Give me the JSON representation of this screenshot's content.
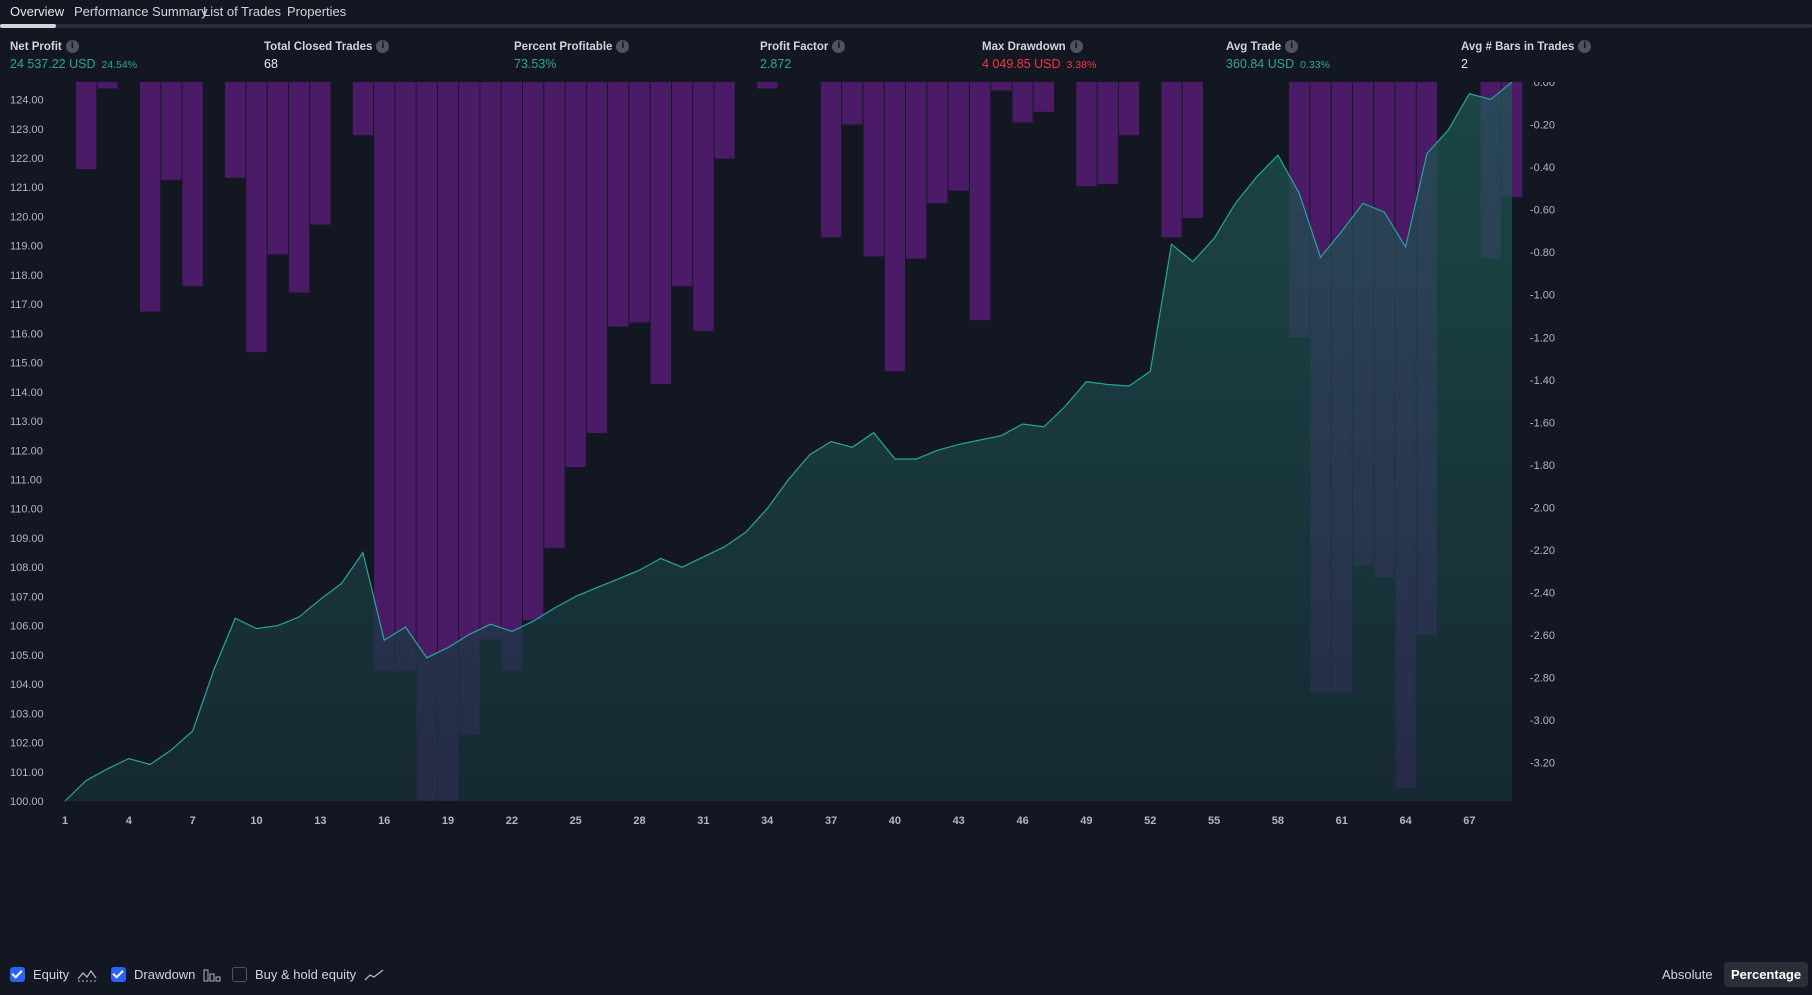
{
  "tabs": [
    {
      "label": "Overview",
      "active": true
    },
    {
      "label": "Performance Summary",
      "active": false
    },
    {
      "label": "List of Trades",
      "active": false
    },
    {
      "label": "Properties",
      "active": false
    }
  ],
  "stats": {
    "net_profit": {
      "label": "Net Profit",
      "value": "24 537.22 USD",
      "sub": "24.54%"
    },
    "total_closed_trades": {
      "label": "Total Closed Trades",
      "value": "68"
    },
    "percent_profitable": {
      "label": "Percent Profitable",
      "value": "73.53%"
    },
    "profit_factor": {
      "label": "Profit Factor",
      "value": "2.872"
    },
    "max_drawdown": {
      "label": "Max Drawdown",
      "value": "4 049.85 USD",
      "sub": "3.38%"
    },
    "avg_trade": {
      "label": "Avg Trade",
      "value": "360.84 USD",
      "sub": "0.33%"
    },
    "avg_bars": {
      "label": "Avg # Bars in Trades",
      "value": "2"
    }
  },
  "legend": {
    "equity": {
      "label": "Equity",
      "checked": true
    },
    "drawdown": {
      "label": "Drawdown",
      "checked": true
    },
    "buy_hold": {
      "label": "Buy & hold equity",
      "checked": false
    }
  },
  "view_toggle": {
    "absolute": "Absolute",
    "percentage": "Percentage",
    "selected": "Percentage"
  },
  "colors": {
    "background": "#131722",
    "equity_line": "#26a69a",
    "drawdown_bar": "#7b1fa2",
    "positive": "#26a69a",
    "negative": "#f23645"
  },
  "chart_data": {
    "type": "area",
    "x_ticks": [
      1,
      4,
      7,
      10,
      13,
      16,
      19,
      22,
      25,
      28,
      31,
      34,
      37,
      40,
      43,
      46,
      49,
      52,
      55,
      58,
      61,
      64,
      67
    ],
    "left_axis": {
      "ylim": [
        100,
        124.6
      ],
      "ticks": [
        "124.00",
        "123.00",
        "122.00",
        "121.00",
        "120.00",
        "119.00",
        "118.00",
        "117.00",
        "116.00",
        "115.00",
        "114.00",
        "113.00",
        "112.00",
        "111.00",
        "110.00",
        "109.00",
        "108.00",
        "107.00",
        "106.00",
        "105.00",
        "104.00",
        "103.00",
        "102.00",
        "101.00",
        "100.00"
      ]
    },
    "right_axis": {
      "ylim": [
        -3.38,
        0
      ],
      "ticks": [
        "0.00",
        "-0.20",
        "-0.40",
        "-0.60",
        "-0.80",
        "-1.00",
        "-1.20",
        "-1.40",
        "-1.60",
        "-1.80",
        "-2.00",
        "-2.20",
        "-2.40",
        "-2.60",
        "-2.80",
        "-3.00",
        "-3.20"
      ]
    },
    "series": [
      {
        "name": "Equity",
        "axis": "left",
        "values": [
          100.0,
          100.7,
          101.1,
          101.45,
          101.25,
          101.75,
          102.4,
          104.5,
          106.25,
          105.9,
          106.0,
          106.3,
          106.9,
          107.45,
          108.5,
          105.5,
          105.95,
          104.9,
          105.25,
          105.7,
          106.05,
          105.8,
          106.15,
          106.6,
          107.0,
          107.3,
          107.6,
          107.9,
          108.3,
          108.0,
          108.35,
          108.7,
          109.2,
          110.0,
          111.0,
          111.85,
          112.3,
          112.1,
          112.6,
          111.7,
          111.7,
          112.0,
          112.2,
          112.35,
          112.5,
          112.9,
          112.8,
          113.5,
          114.35,
          114.25,
          114.2,
          114.7,
          119.05,
          118.45,
          119.25,
          120.45,
          121.35,
          122.1,
          120.8,
          118.6,
          119.5,
          120.45,
          120.15,
          118.95,
          122.15,
          122.95,
          124.2,
          124.0,
          124.6
        ],
        "color": "#26a69a"
      },
      {
        "name": "Drawdown",
        "axis": "right",
        "type": "bar",
        "values": [
          0,
          -0.41,
          -0.03,
          0,
          -1.08,
          -0.46,
          -0.96,
          0,
          -0.45,
          -1.27,
          -0.81,
          -0.99,
          -0.67,
          0,
          -0.25,
          -2.77,
          -2.77,
          -3.38,
          -3.38,
          -3.07,
          -2.62,
          -2.77,
          -2.53,
          -2.19,
          -1.81,
          -1.65,
          -1.15,
          -1.13,
          -1.42,
          -0.96,
          -1.17,
          -0.36,
          0,
          -0.03,
          0,
          0,
          -0.73,
          -0.2,
          -0.82,
          -1.36,
          -0.83,
          -0.57,
          -0.51,
          -1.12,
          -0.04,
          -0.19,
          -0.14,
          0,
          -0.49,
          -0.48,
          -0.25,
          0,
          -0.73,
          -0.64,
          0,
          0,
          0,
          0,
          -1.2,
          -2.87,
          -2.87,
          -2.27,
          -2.33,
          -3.32,
          -2.6,
          0,
          0,
          -0.83,
          -0.54
        ],
        "color": "#7b1fa2"
      }
    ]
  }
}
